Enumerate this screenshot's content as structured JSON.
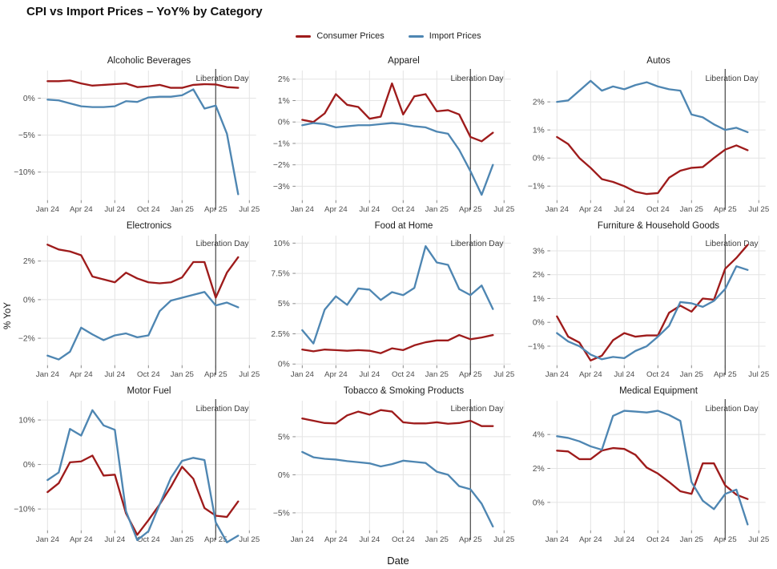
{
  "title": "CPI vs Import Prices – YoY% by Category",
  "legend": [
    {
      "label": "Consumer Prices",
      "color": "#9E1B1B"
    },
    {
      "label": "Import Prices",
      "color": "#4E86B2"
    }
  ],
  "axis": {
    "x_label": "Date",
    "y_label": "% YoY",
    "x_min": -0.6,
    "x_max": 18.6,
    "x_ticks": [
      {
        "index": 0,
        "label": "Jan 24"
      },
      {
        "index": 3,
        "label": "Apr 24"
      },
      {
        "index": 6,
        "label": "Jul 24"
      },
      {
        "index": 9,
        "label": "Oct 24"
      },
      {
        "index": 12,
        "label": "Jan 25"
      },
      {
        "index": 15,
        "label": "Apr 25"
      },
      {
        "index": 18,
        "label": "Jul 25"
      }
    ]
  },
  "annotation": {
    "label": "Liberation Day",
    "x_index": 15
  },
  "colors": {
    "consumer": "#9E1B1B",
    "import": "#4E86B2",
    "gridline": "#E4E4E4",
    "vline": "#4D4D4D",
    "tick_mark": "#8A8A8A",
    "tick_text": "#4D4D4D",
    "annotation_text": "#3D3D3D"
  },
  "chart_data": {
    "type": "line",
    "months": [
      "Jan 24",
      "Feb 24",
      "Mar 24",
      "Apr 24",
      "May 24",
      "Jun 24",
      "Jul 24",
      "Aug 24",
      "Sep 24",
      "Oct 24",
      "Nov 24",
      "Dec 24",
      "Jan 25",
      "Feb 25",
      "Mar 25",
      "Apr 25",
      "May 25",
      "Jun 25"
    ],
    "series_names": [
      "Consumer Prices",
      "Import Prices"
    ],
    "panels": [
      {
        "title": "Alcoholic Beverages",
        "y_domain": [
          -13.8,
          3.3
        ],
        "y_ticks": [
          {
            "value": 0,
            "label": "0%"
          },
          {
            "value": -5,
            "label": "−5%"
          },
          {
            "value": -10,
            "label": "−10%"
          }
        ],
        "consumer": [
          2.3,
          2.3,
          2.4,
          2.0,
          1.7,
          1.8,
          1.9,
          2.0,
          1.5,
          1.6,
          1.8,
          1.4,
          1.4,
          1.8,
          1.9,
          1.85,
          1.5,
          1.4
        ],
        "import": [
          -0.2,
          -0.3,
          -0.7,
          -1.1,
          -1.2,
          -1.2,
          -1.1,
          -0.4,
          -0.5,
          0.1,
          0.2,
          0.2,
          0.4,
          1.2,
          -1.4,
          -1.0,
          -4.8,
          -13.0
        ]
      },
      {
        "title": "Apparel",
        "y_domain": [
          -3.65,
          2.25
        ],
        "y_ticks": [
          {
            "value": 2,
            "label": "2%"
          },
          {
            "value": 1,
            "label": "1%"
          },
          {
            "value": 0,
            "label": "0%"
          },
          {
            "value": -1,
            "label": "−1%"
          },
          {
            "value": -2,
            "label": "−2%"
          },
          {
            "value": -3,
            "label": "−3%"
          }
        ],
        "consumer": [
          0.1,
          0.0,
          0.4,
          1.3,
          0.8,
          0.7,
          0.15,
          0.25,
          1.8,
          0.35,
          1.2,
          1.3,
          0.5,
          0.55,
          0.35,
          -0.7,
          -0.9,
          -0.5
        ],
        "import": [
          -0.15,
          -0.05,
          -0.1,
          -0.25,
          -0.2,
          -0.15,
          -0.15,
          -0.1,
          -0.05,
          -0.1,
          -0.2,
          -0.25,
          -0.45,
          -0.55,
          -1.3,
          -2.3,
          -3.4,
          -2.0
        ]
      },
      {
        "title": "Autos",
        "y_domain": [
          -1.5,
          3.0
        ],
        "y_ticks": [
          {
            "value": 2,
            "label": "2%"
          },
          {
            "value": 1,
            "label": "1%"
          },
          {
            "value": 0,
            "label": "0%"
          },
          {
            "value": -1,
            "label": "−1%"
          }
        ],
        "consumer": [
          0.75,
          0.5,
          0.0,
          -0.35,
          -0.75,
          -0.85,
          -1.0,
          -1.2,
          -1.28,
          -1.25,
          -0.7,
          -0.45,
          -0.35,
          -0.32,
          0.0,
          0.3,
          0.45,
          0.28
        ],
        "import": [
          2.0,
          2.05,
          2.4,
          2.75,
          2.4,
          2.55,
          2.45,
          2.6,
          2.7,
          2.55,
          2.45,
          2.4,
          1.55,
          1.45,
          1.2,
          1.0,
          1.08,
          0.92
        ]
      },
      {
        "title": "Electronics",
        "y_domain": [
          -3.4,
          3.15
        ],
        "y_ticks": [
          {
            "value": 2,
            "label": "2%"
          },
          {
            "value": 0,
            "label": "0%"
          },
          {
            "value": -2,
            "label": "−2%"
          }
        ],
        "consumer": [
          2.85,
          2.6,
          2.5,
          2.3,
          1.2,
          1.05,
          0.9,
          1.4,
          1.1,
          0.9,
          0.85,
          0.9,
          1.15,
          1.95,
          1.95,
          0.1,
          1.4,
          2.2
        ],
        "import": [
          -2.9,
          -3.1,
          -2.7,
          -1.45,
          -1.8,
          -2.1,
          -1.85,
          -1.75,
          -1.95,
          -1.85,
          -0.6,
          -0.05,
          0.1,
          0.25,
          0.4,
          -0.3,
          -0.15,
          -0.4
        ]
      },
      {
        "title": "Food at Home",
        "y_domain": [
          -0.1,
          10.35
        ],
        "y_ticks": [
          {
            "value": 10,
            "label": "10%"
          },
          {
            "value": 7.5,
            "label": "7.5%"
          },
          {
            "value": 5,
            "label": "5%"
          },
          {
            "value": 2.5,
            "label": "2.5%"
          },
          {
            "value": 0,
            "label": "0%"
          }
        ],
        "consumer": [
          1.2,
          1.05,
          1.2,
          1.15,
          1.1,
          1.15,
          1.1,
          0.9,
          1.3,
          1.15,
          1.55,
          1.8,
          1.95,
          1.95,
          2.4,
          2.05,
          2.2,
          2.4
        ],
        "import": [
          2.8,
          1.7,
          4.5,
          5.6,
          4.9,
          6.25,
          6.15,
          5.3,
          5.95,
          5.7,
          6.3,
          9.75,
          8.4,
          8.2,
          6.2,
          5.7,
          6.5,
          4.55
        ]
      },
      {
        "title": "Furniture & Household Goods",
        "y_domain": [
          -1.8,
          3.5
        ],
        "y_ticks": [
          {
            "value": 3,
            "label": "3%"
          },
          {
            "value": 2,
            "label": "2%"
          },
          {
            "value": 1,
            "label": "1%"
          },
          {
            "value": 0,
            "label": "0%"
          },
          {
            "value": -1,
            "label": "−1%"
          }
        ],
        "consumer": [
          0.25,
          -0.6,
          -0.85,
          -1.6,
          -1.4,
          -0.75,
          -0.45,
          -0.6,
          -0.55,
          -0.55,
          0.4,
          0.7,
          0.45,
          1.0,
          0.95,
          2.25,
          2.7,
          3.25
        ],
        "import": [
          -0.45,
          -0.8,
          -1.0,
          -1.35,
          -1.55,
          -1.45,
          -1.5,
          -1.2,
          -1.0,
          -0.6,
          -0.15,
          0.85,
          0.8,
          0.65,
          0.9,
          1.4,
          2.35,
          2.2
        ]
      },
      {
        "title": "Motor Fuel",
        "y_domain": [
          -14.8,
          13.6
        ],
        "y_ticks": [
          {
            "value": 10,
            "label": "10%"
          },
          {
            "value": 0,
            "label": "0%"
          },
          {
            "value": -10,
            "label": "−10%"
          }
        ],
        "consumer": [
          -6.2,
          -4.2,
          0.5,
          0.7,
          2.0,
          -2.5,
          -2.3,
          -11.0,
          -15.8,
          -12.5,
          -9.0,
          -5.0,
          -0.5,
          -3.2,
          -9.8,
          -11.5,
          -11.8,
          -8.3
        ],
        "import": [
          -3.5,
          -1.8,
          8.0,
          6.5,
          12.2,
          8.8,
          7.8,
          -10.5,
          -17.0,
          -15.0,
          -9.0,
          -3.0,
          0.8,
          1.5,
          1.0,
          -13.0,
          -17.5,
          -16.0
        ]
      },
      {
        "title": "Tobacco & Smoking Products",
        "y_domain": [
          -7.3,
          9.3
        ],
        "y_ticks": [
          {
            "value": 5,
            "label": "5%"
          },
          {
            "value": 0,
            "label": "0%"
          },
          {
            "value": -5,
            "label": "−5%"
          }
        ],
        "consumer": [
          7.4,
          7.1,
          6.8,
          6.75,
          7.8,
          8.3,
          7.9,
          8.5,
          8.3,
          6.9,
          6.75,
          6.75,
          6.9,
          6.7,
          6.8,
          7.1,
          6.4,
          6.4
        ],
        "import": [
          3.0,
          2.3,
          2.1,
          2.0,
          1.8,
          1.65,
          1.5,
          1.1,
          1.4,
          1.85,
          1.7,
          1.55,
          0.4,
          0.0,
          -1.5,
          -1.9,
          -3.8,
          -6.8
        ]
      },
      {
        "title": "Medical Equipment",
        "y_domain": [
          -1.65,
          5.8
        ],
        "y_ticks": [
          {
            "value": 4,
            "label": "4%"
          },
          {
            "value": 2,
            "label": "2%"
          },
          {
            "value": 0,
            "label": "0%"
          }
        ],
        "consumer": [
          3.05,
          3.0,
          2.55,
          2.55,
          3.05,
          3.2,
          3.15,
          2.8,
          2.05,
          1.7,
          1.2,
          0.65,
          0.5,
          2.3,
          2.3,
          1.0,
          0.45,
          0.2
        ],
        "import": [
          3.9,
          3.8,
          3.6,
          3.3,
          3.1,
          5.1,
          5.4,
          5.35,
          5.3,
          5.4,
          5.15,
          4.8,
          1.2,
          0.1,
          -0.4,
          0.5,
          0.75,
          -1.3
        ]
      }
    ]
  }
}
